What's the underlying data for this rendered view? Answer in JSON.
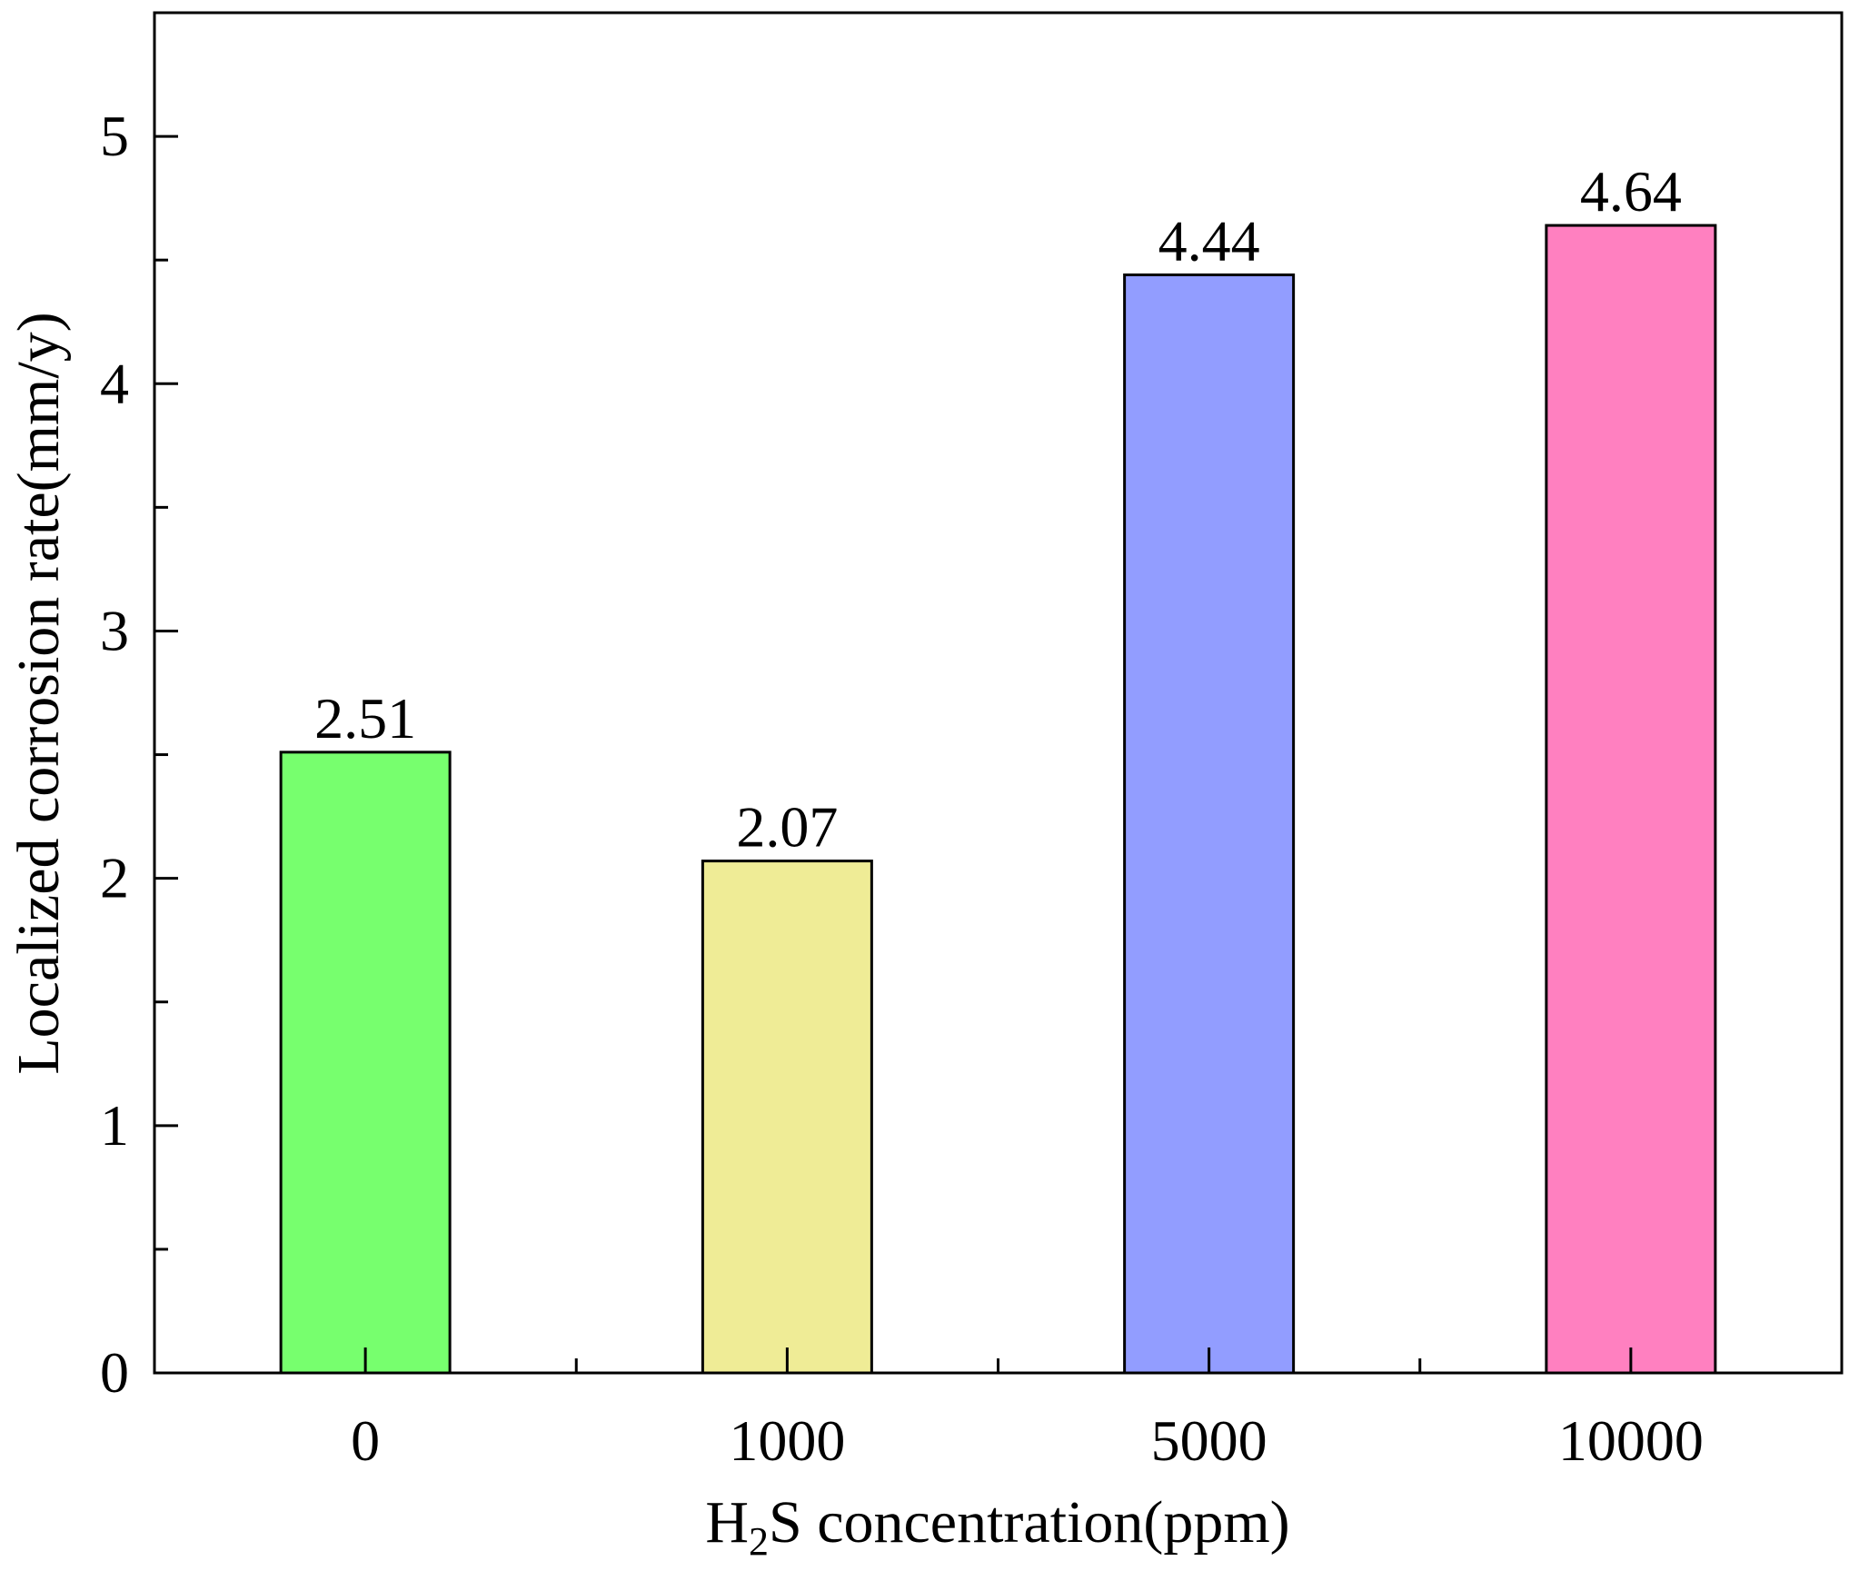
{
  "chart_data": {
    "type": "bar",
    "categories": [
      "0",
      "1000",
      "5000",
      "10000"
    ],
    "values": [
      2.51,
      2.07,
      4.44,
      4.64
    ],
    "data_labels": [
      "2.51",
      "2.07",
      "4.44",
      "4.64"
    ],
    "colors": [
      "#77FF6E",
      "#EFEC96",
      "#929DFF",
      "#FF80C0"
    ],
    "ylim": [
      0,
      5.5
    ],
    "yticks": [
      0,
      1,
      2,
      3,
      4,
      5
    ],
    "ytick_labels": [
      "0",
      "1",
      "2",
      "3",
      "4",
      "5"
    ],
    "y_minor_step": 0.5,
    "ylabel": "Localized corrosion rate(mm/y)",
    "xlabel": {
      "main": "H",
      "subscript": "2",
      "rest": "S concentration(ppm)"
    },
    "grid": false,
    "legend": "none"
  }
}
